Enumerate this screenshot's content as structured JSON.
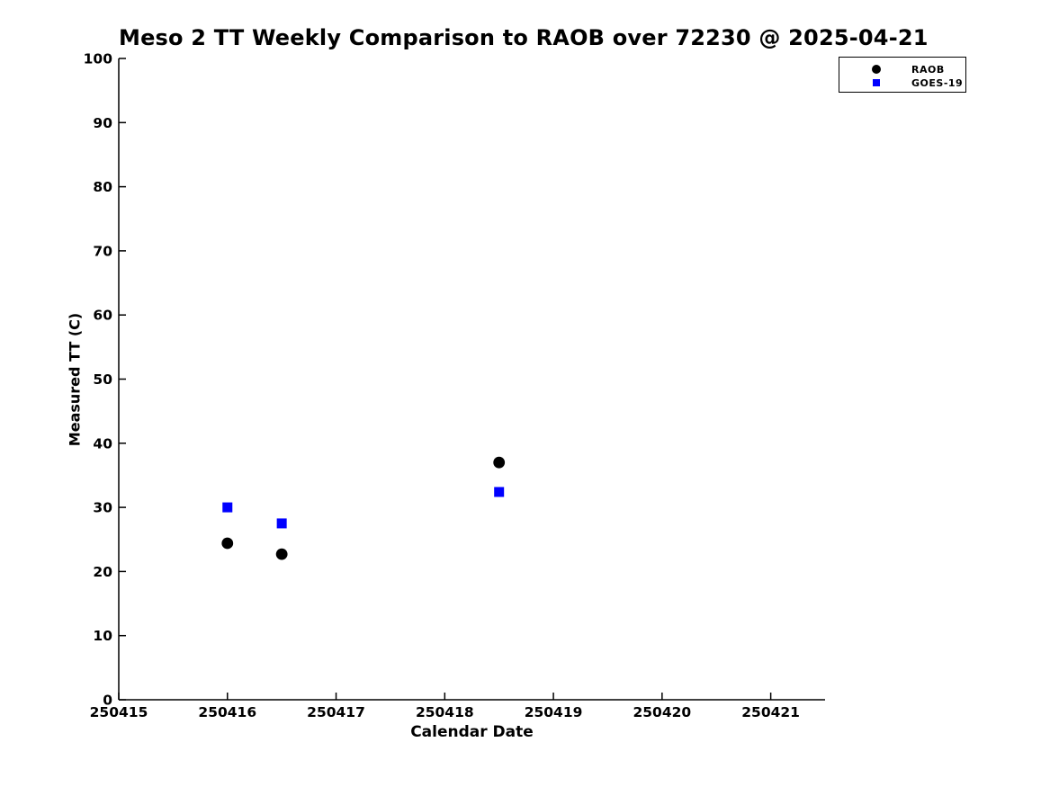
{
  "chart_data": {
    "type": "scatter",
    "title": "Meso 2 TT Weekly Comparison to RAOB over 72230 @ 2025-04-21",
    "xlabel": "Calendar Date",
    "ylabel": "Measured TT (C)",
    "xlim": [
      250415,
      250421.5
    ],
    "ylim": [
      0,
      100
    ],
    "xticks": [
      250415,
      250416,
      250417,
      250418,
      250419,
      250420,
      250421
    ],
    "yticks": [
      0,
      10,
      20,
      30,
      40,
      50,
      60,
      70,
      80,
      90,
      100
    ],
    "grid": false,
    "legend_position": "top-right",
    "axis_color": "#000000",
    "series": [
      {
        "name": "RAOB",
        "marker": "circle",
        "color": "#000000",
        "x": [
          250416.0,
          250416.5,
          250418.5
        ],
        "y": [
          24.4,
          22.7,
          37.0
        ]
      },
      {
        "name": "GOES-19",
        "marker": "square",
        "color": "#0000ff",
        "x": [
          250416.0,
          250416.5,
          250418.5
        ],
        "y": [
          30.0,
          27.5,
          32.4
        ]
      }
    ]
  }
}
